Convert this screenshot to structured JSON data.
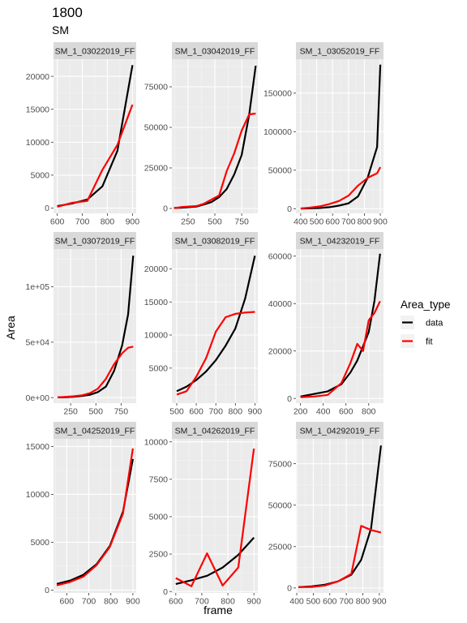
{
  "chart_data": {
    "type": "line",
    "title": "1800",
    "subtitle": "SM",
    "xlabel": "frame",
    "ylabel": "Area",
    "legend": {
      "title": "Area_type",
      "placement": "right",
      "entries": [
        {
          "name": "data",
          "color": "#000000"
        },
        {
          "name": "fit",
          "color": "#ff0000"
        }
      ]
    },
    "panels": [
      {
        "strip": "SM_1_03022019_FF",
        "xlim": [
          585,
          915
        ],
        "ylim": [
          -800,
          22600
        ],
        "x_ticks": [
          600,
          700,
          800,
          900
        ],
        "x_tick_labels": [
          "600",
          "700",
          "800",
          "900"
        ],
        "y_ticks": [
          0,
          5000,
          10000,
          15000,
          20000
        ],
        "y_tick_labels": [
          "0",
          "5000",
          "10000",
          "15000",
          "20000"
        ],
        "series": [
          {
            "name": "data",
            "x": [
              600,
              660,
              720,
              780,
              840,
              900
            ],
            "y": [
              300,
              700,
              1300,
              3300,
              8700,
              21700
            ]
          },
          {
            "name": "fit",
            "x": [
              600,
              660,
              720,
              780,
              840,
              900
            ],
            "y": [
              200,
              800,
              1100,
              5800,
              9600,
              15700
            ]
          }
        ]
      },
      {
        "strip": "SM_1_03042019_FF",
        "xlim": [
          100,
          900
        ],
        "ylim": [
          -3000,
          92000
        ],
        "x_ticks": [
          250,
          500,
          750
        ],
        "x_tick_labels": [
          "250",
          "500",
          "750"
        ],
        "y_ticks": [
          0,
          25000,
          50000,
          75000
        ],
        "y_tick_labels": [
          "0",
          "25000",
          "50000",
          "75000"
        ],
        "series": [
          {
            "name": "data",
            "x": [
              120,
              190,
              260,
              330,
              400,
              470,
              540,
              610,
              680,
              750,
              820,
              880
            ],
            "y": [
              300,
              500,
              800,
              1200,
              2500,
              4000,
              7000,
              12000,
              21000,
              33000,
              58000,
              88000
            ]
          },
          {
            "name": "fit",
            "x": [
              120,
              190,
              260,
              330,
              400,
              470,
              540,
              610,
              680,
              750,
              820,
              880
            ],
            "y": [
              200,
              900,
              1200,
              1500,
              3000,
              5500,
              8000,
              23000,
              34000,
              48000,
              58000,
              58500
            ]
          }
        ]
      },
      {
        "strip": "SM_1_03052019_FF",
        "xlim": [
          370,
          920
        ],
        "ylim": [
          -6000,
          194000
        ],
        "x_ticks": [
          400,
          500,
          600,
          700,
          800,
          900
        ],
        "x_tick_labels": [
          "400",
          "500",
          "600",
          "700",
          "800",
          "900"
        ],
        "y_ticks": [
          0,
          50000,
          100000,
          150000
        ],
        "y_tick_labels": [
          "0",
          "50000",
          "100000",
          "150000"
        ],
        "series": [
          {
            "name": "data",
            "x": [
              400,
              460,
              520,
              580,
              640,
              700,
              760,
              820,
              880,
              900
            ],
            "y": [
              200,
              500,
              1000,
              2000,
              4000,
              7000,
              16000,
              40000,
              80000,
              187000
            ]
          },
          {
            "name": "fit",
            "x": [
              400,
              460,
              520,
              580,
              640,
              700,
              760,
              820,
              880,
              900
            ],
            "y": [
              300,
              1500,
              3000,
              6000,
              10000,
              17000,
              30000,
              40000,
              46000,
              54000
            ]
          }
        ]
      },
      {
        "strip": "SM_1_03072019_FF",
        "xlim": [
          80,
          900
        ],
        "ylim": [
          -5000,
          134000
        ],
        "x_ticks": [
          250,
          500,
          750
        ],
        "x_tick_labels": [
          "250",
          "500",
          "750"
        ],
        "y_ticks": [
          0,
          50000,
          100000
        ],
        "y_tick_labels": [
          "0e+00",
          "5e+04",
          "1e+05"
        ],
        "series": [
          {
            "name": "data",
            "x": [
              120,
              200,
              280,
              360,
              440,
              520,
              600,
              680,
              760,
              820,
              870
            ],
            "y": [
              200,
              400,
              800,
              1500,
              2500,
              5000,
              10000,
              24000,
              47000,
              75000,
              128000
            ]
          },
          {
            "name": "fit",
            "x": [
              120,
              200,
              280,
              360,
              440,
              520,
              600,
              680,
              760,
              820,
              870
            ],
            "y": [
              300,
              700,
              1200,
              2000,
              4000,
              8000,
              17000,
              30000,
              40000,
              45000,
              46000
            ]
          }
        ]
      },
      {
        "strip": "SM_1_03082019_FF",
        "xlim": [
          475,
          915
        ],
        "ylim": [
          -300,
          23000
        ],
        "x_ticks": [
          500,
          600,
          700,
          800,
          900
        ],
        "x_tick_labels": [
          "500",
          "600",
          "700",
          "800",
          "900"
        ],
        "y_ticks": [
          5000,
          10000,
          15000,
          20000
        ],
        "y_tick_labels": [
          "5000",
          "10000",
          "15000",
          "20000"
        ],
        "series": [
          {
            "name": "data",
            "x": [
              500,
              550,
              600,
              650,
              700,
              750,
              800,
              850,
              900
            ],
            "y": [
              1500,
              2200,
              3200,
              4500,
              6200,
              8400,
              11000,
              15500,
              22000
            ]
          },
          {
            "name": "fit",
            "x": [
              500,
              550,
              600,
              650,
              700,
              750,
              800,
              850,
              900
            ],
            "y": [
              1000,
              1500,
              3700,
              6500,
              10500,
              12700,
              13200,
              13400,
              13500
            ]
          }
        ]
      },
      {
        "strip": "SM_1_04232019_FF",
        "xlim": [
          160,
          930
        ],
        "ylim": [
          -2000,
          63000
        ],
        "x_ticks": [
          200,
          400,
          600,
          800
        ],
        "x_tick_labels": [
          "200",
          "400",
          "600",
          "800"
        ],
        "y_ticks": [
          0,
          20000,
          40000,
          60000
        ],
        "y_tick_labels": [
          "0",
          "20000",
          "40000",
          "60000"
        ],
        "series": [
          {
            "name": "data",
            "x": [
              200,
              440,
              560,
              640,
              700,
              750,
              800,
              850,
              900
            ],
            "y": [
              800,
              3000,
              6000,
              11000,
              16000,
              22000,
              28000,
              41000,
              61000
            ]
          },
          {
            "name": "fit",
            "x": [
              200,
              320,
              440,
              560,
              640,
              700,
              750,
              800,
              850,
              900
            ],
            "y": [
              500,
              800,
              1500,
              6500,
              15000,
              23000,
              20000,
              33000,
              36000,
              41000
            ]
          }
        ]
      },
      {
        "strip": "SM_1_04252019_FF",
        "xlim": [
          540,
          915
        ],
        "ylim": [
          -300,
          15800
        ],
        "x_ticks": [
          600,
          700,
          800,
          900
        ],
        "x_tick_labels": [
          "600",
          "700",
          "800",
          "900"
        ],
        "y_ticks": [
          0,
          5000,
          10000,
          15000
        ],
        "y_tick_labels": [
          "0",
          "5000",
          "10000",
          "15000"
        ],
        "series": [
          {
            "name": "data",
            "x": [
              555,
              615,
              675,
              735,
              795,
              855,
              900
            ],
            "y": [
              650,
              1000,
              1600,
              2700,
              4600,
              8200,
              13700
            ]
          },
          {
            "name": "fit",
            "x": [
              555,
              615,
              675,
              735,
              795,
              855,
              900
            ],
            "y": [
              500,
              850,
              1400,
              2600,
              4500,
              8000,
              14800
            ]
          }
        ]
      },
      {
        "strip": "SM_1_04262019_FF",
        "xlim": [
          585,
          915
        ],
        "ylim": [
          -100,
          10200
        ],
        "x_ticks": [
          600,
          700,
          800,
          900
        ],
        "x_tick_labels": [
          "600",
          "700",
          "800",
          "900"
        ],
        "y_ticks": [
          0,
          2500,
          5000,
          7500,
          10000
        ],
        "y_tick_labels": [
          "0",
          "2500",
          "5000",
          "7500",
          "10000"
        ],
        "series": [
          {
            "name": "data",
            "x": [
              600,
              660,
              720,
              780,
              840,
              900
            ],
            "y": [
              500,
              750,
              1050,
              1600,
              2450,
              3600
            ]
          },
          {
            "name": "fit",
            "x": [
              600,
              660,
              720,
              780,
              840,
              900
            ],
            "y": [
              900,
              350,
              2550,
              400,
              1600,
              9550
            ]
          }
        ]
      },
      {
        "strip": "SM_1_04292019_FF",
        "xlim": [
          395,
          925
        ],
        "ylim": [
          -3000,
          90000
        ],
        "x_ticks": [
          400,
          500,
          600,
          700,
          800,
          900
        ],
        "x_tick_labels": [
          "400",
          "500",
          "600",
          "700",
          "800",
          "900"
        ],
        "y_ticks": [
          0,
          25000,
          50000,
          75000
        ],
        "y_tick_labels": [
          "0",
          "25000",
          "50000",
          "75000"
        ],
        "series": [
          {
            "name": "data",
            "x": [
              410,
              490,
              570,
              650,
              730,
              790,
              850,
              910
            ],
            "y": [
              500,
              1000,
              2000,
              4000,
              8000,
              17000,
              36000,
              86000
            ]
          },
          {
            "name": "fit",
            "x": [
              410,
              490,
              570,
              650,
              730,
              790,
              850,
              910
            ],
            "y": [
              500,
              600,
              1500,
              4000,
              8500,
              37500,
              35000,
              33500
            ]
          }
        ]
      }
    ]
  }
}
